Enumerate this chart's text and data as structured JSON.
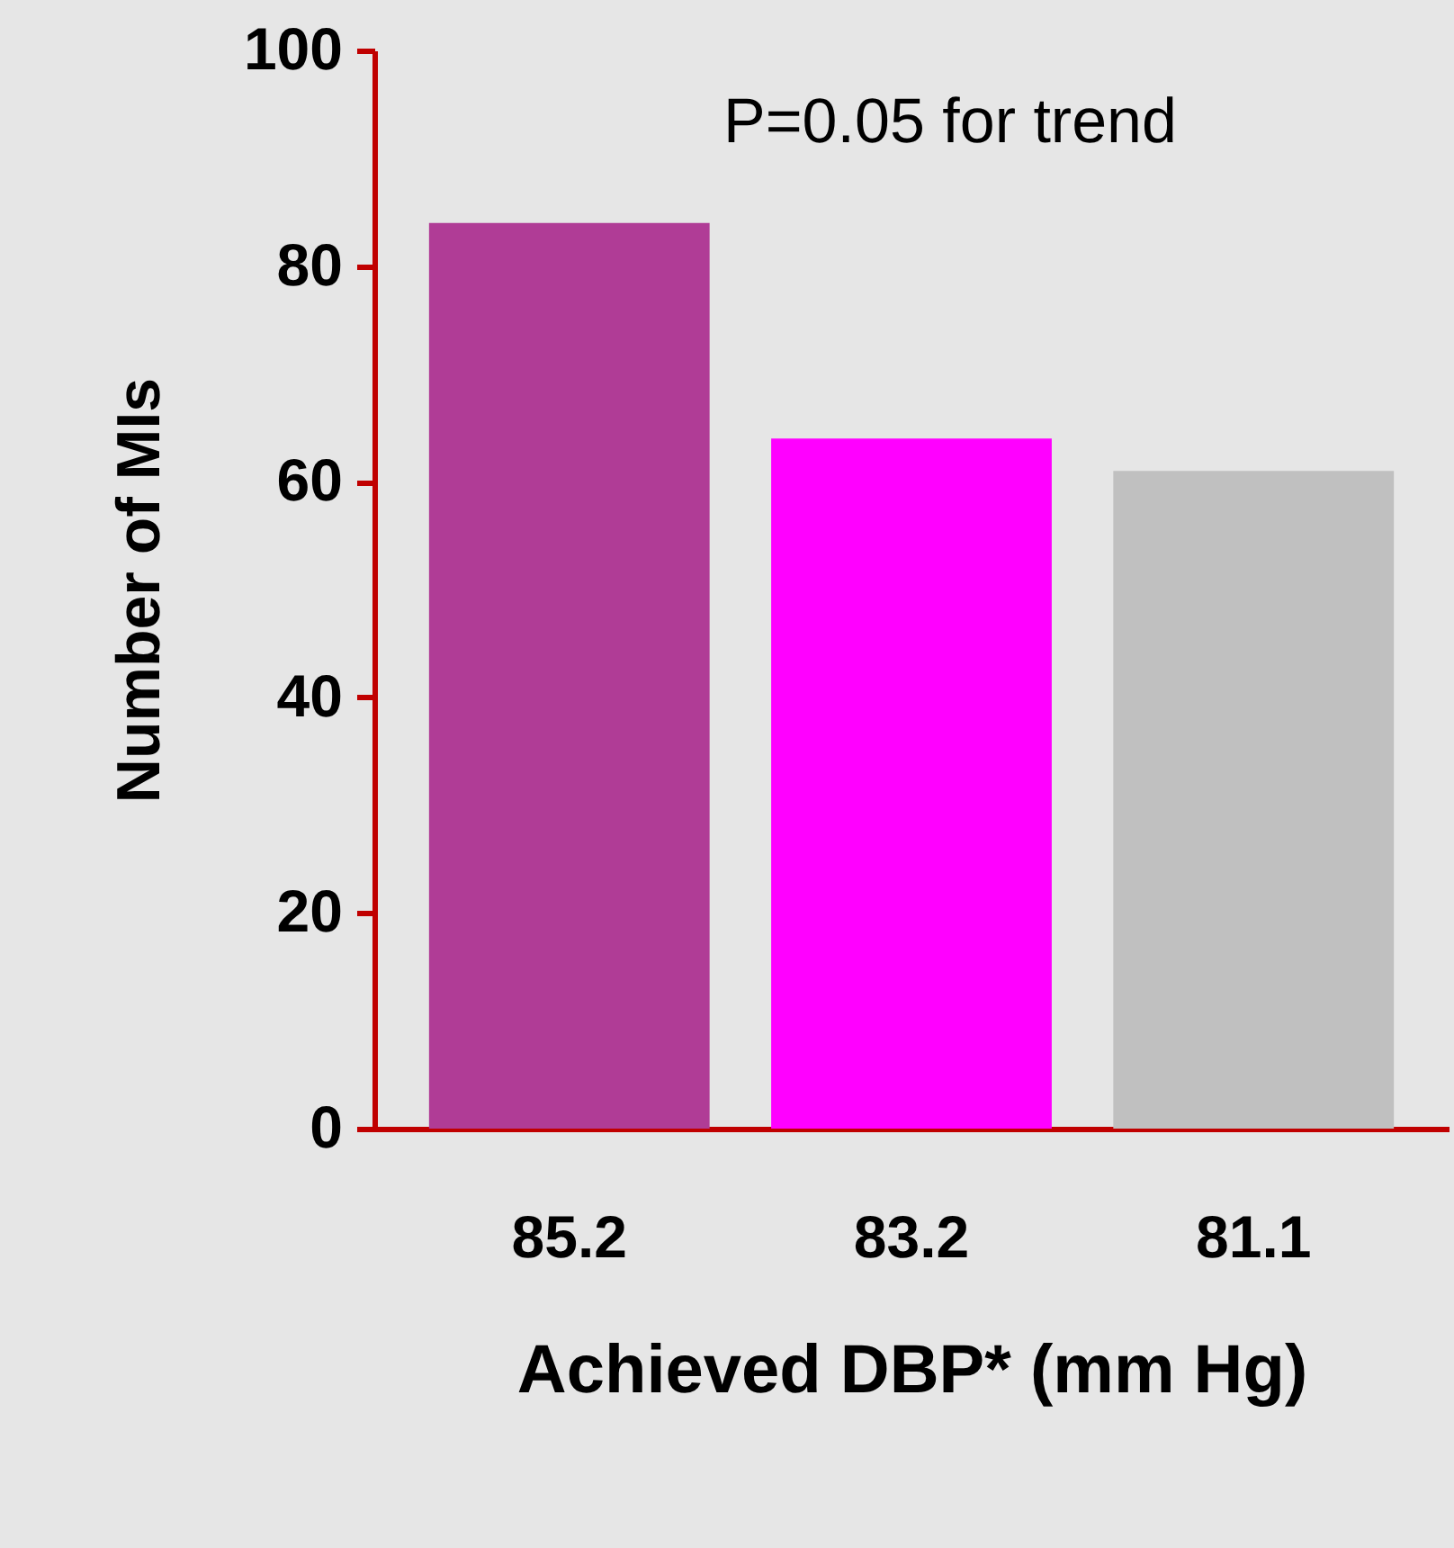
{
  "chart_data": {
    "type": "bar",
    "xlabel": "Achieved DBP*\n(mm Hg)",
    "ylabel": "Number of MIs",
    "categories": [
      "85.2",
      "83.2",
      "81.1"
    ],
    "values": [
      84,
      64,
      61
    ],
    "colors": [
      "#b03c96",
      "#ff00ff",
      "#c0c0c0"
    ],
    "ylim": [
      0,
      100
    ],
    "yticks": [
      0,
      20,
      40,
      60,
      80,
      100
    ],
    "grid": false,
    "annotations": [
      "P=0.05 for trend"
    ]
  }
}
